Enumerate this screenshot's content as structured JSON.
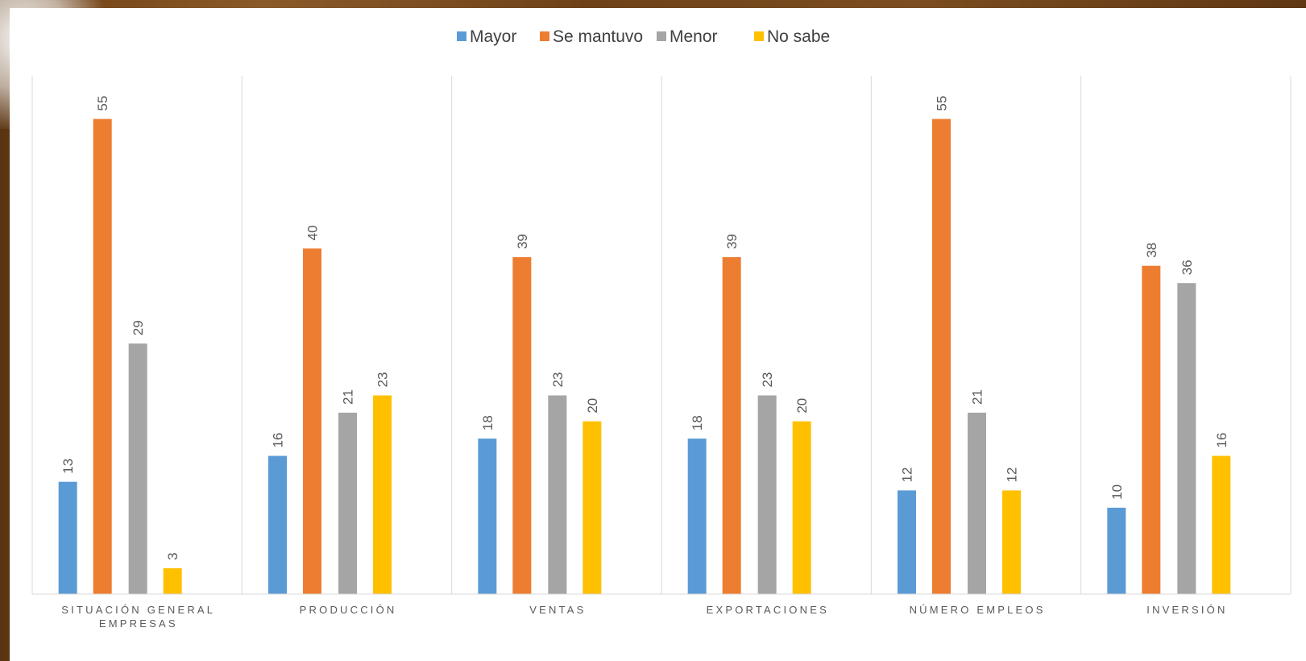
{
  "chart_data": {
    "type": "bar",
    "categories": [
      [
        "SITUACIÓN GENERAL",
        "EMPRESAS"
      ],
      [
        "PRODUCCIÓN"
      ],
      [
        "VENTAS"
      ],
      [
        "EXPORTACIONES"
      ],
      [
        "NÚMERO EMPLEOS"
      ],
      [
        "INVERSIÓN"
      ]
    ],
    "series": [
      {
        "name": "Mayor",
        "color": "#5b9bd5",
        "values": [
          13,
          16,
          18,
          18,
          12,
          10
        ]
      },
      {
        "name": "Se mantuvo",
        "color": "#ed7d31",
        "values": [
          55,
          40,
          39,
          39,
          55,
          38
        ]
      },
      {
        "name": "Menor",
        "color": "#a5a5a5",
        "values": [
          29,
          21,
          23,
          23,
          21,
          36
        ]
      },
      {
        "name": "No sabe",
        "color": "#ffc000",
        "values": [
          3,
          23,
          20,
          20,
          12,
          16
        ]
      }
    ],
    "ylim": [
      0,
      60
    ],
    "grid": false,
    "category_separators": true,
    "data_labels": "rotated-vertical",
    "legend_position": "top-center"
  }
}
